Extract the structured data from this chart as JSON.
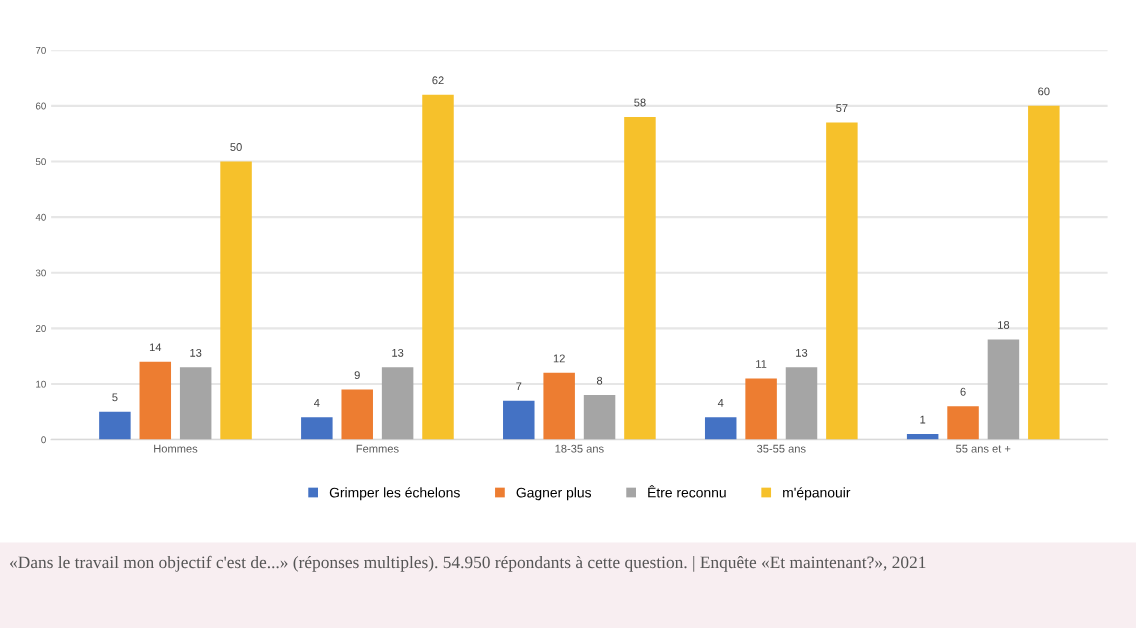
{
  "chart_data": {
    "type": "bar",
    "categories": [
      "Hommes",
      "Femmes",
      "18-35 ans",
      "35-55 ans",
      "55 ans et +"
    ],
    "series": [
      {
        "name": "Grimper les échelons",
        "color": "#4472c4",
        "values": [
          5,
          4,
          7,
          4,
          1
        ]
      },
      {
        "name": "Gagner plus",
        "color": "#ed7d31",
        "values": [
          14,
          9,
          12,
          11,
          6
        ]
      },
      {
        "name": "Être reconnu",
        "color": "#a5a5a5",
        "values": [
          13,
          13,
          8,
          13,
          18
        ]
      },
      {
        "name": "m'épanouir",
        "color": "#f6c12b",
        "values": [
          50,
          62,
          58,
          57,
          60
        ]
      }
    ],
    "ylim": [
      0,
      70
    ],
    "yticks": [
      0,
      10,
      20,
      30,
      40,
      50,
      60,
      70
    ],
    "grid": "y",
    "legend": "bottom",
    "data_labels": true,
    "annotations": [
      "«Dans le travail mon objectif c'est de...» (réponses multiples). 54.950 répondants à cette question. | Enquête «Et maintenant?», 2021"
    ]
  }
}
